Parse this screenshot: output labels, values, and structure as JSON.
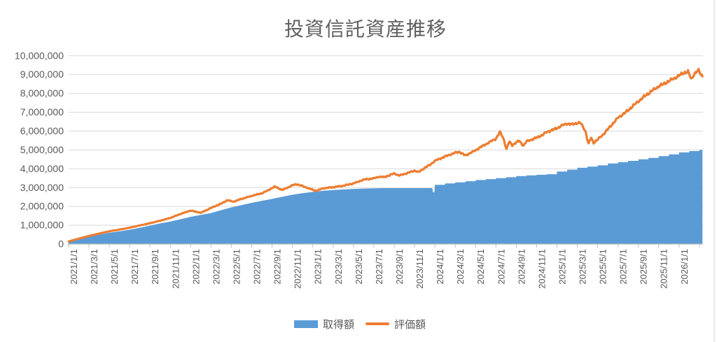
{
  "title": "投資信託資産推移",
  "colors": {
    "area": "#5B9BD5",
    "line": "#ED7D31",
    "gridline": "#D9D9D9",
    "axis": "#BFBFBF",
    "tick": "#BFBFBF",
    "label": "#595959",
    "title": "#5f5f5f",
    "chart_border": "#D9D9D9"
  },
  "legend": [
    {
      "label": "取得額",
      "color": "#5B9BD5",
      "kind": "area"
    },
    {
      "label": "評価額",
      "color": "#ED7D31",
      "kind": "line"
    }
  ],
  "chart_data": {
    "type": "area",
    "title": "投資信託資産推移",
    "x_unit": "months since 2021/1/1 (fractional = intra-month date)",
    "x_range": [
      0,
      62.3
    ],
    "ylim": [
      0,
      10000000
    ],
    "grid": "horizontal-only",
    "legend_position": "bottom-center",
    "y_tick_values": [
      0,
      1000000,
      2000000,
      3000000,
      4000000,
      5000000,
      6000000,
      7000000,
      8000000,
      9000000,
      10000000
    ],
    "y_tick_labels": [
      "0",
      "1,000,000",
      "2,000,000",
      "3,000,000",
      "4,000,000",
      "5,000,000",
      "6,000,000",
      "7,000,000",
      "8,000,000",
      "9,000,000",
      "10,000,000"
    ],
    "x_tick_labels": [
      "2021/1/1",
      "2021/3/1",
      "2021/5/1",
      "2021/7/1",
      "2021/9/1",
      "2021/11/1",
      "2022/1/1",
      "2022/3/1",
      "2022/5/1",
      "2022/7/1",
      "2022/9/1",
      "2022/11/1",
      "2023/1/1",
      "2023/3/1",
      "2023/5/1",
      "2023/7/1",
      "2023/9/1",
      "2023/11/1",
      "2024/1/1",
      "2024/3/1",
      "2024/5/1",
      "2024/7/1",
      "2024/9/1",
      "2024/11/1",
      "2025/1/1",
      "2025/3/1",
      "2025/5/1",
      "2025/7/1",
      "2025/9/1",
      "2025/11/1",
      "2026/1/1"
    ],
    "x_tick_month_interval": 2,
    "series": [
      {
        "name": "取得額",
        "kind": "step-area",
        "color": "#5B9BD5",
        "points": [
          [
            0,
            130000
          ],
          [
            1,
            270000
          ],
          [
            2,
            400000
          ],
          [
            3,
            500000
          ],
          [
            4,
            600000
          ],
          [
            5,
            680000
          ],
          [
            6,
            760000
          ],
          [
            7,
            870000
          ],
          [
            8,
            980000
          ],
          [
            9,
            1100000
          ],
          [
            10,
            1200000
          ],
          [
            11,
            1320000
          ],
          [
            12,
            1450000
          ],
          [
            13,
            1550000
          ],
          [
            14,
            1650000
          ],
          [
            15,
            1800000
          ],
          [
            16,
            1950000
          ],
          [
            17,
            2070000
          ],
          [
            18,
            2190000
          ],
          [
            19,
            2300000
          ],
          [
            20,
            2400000
          ],
          [
            21,
            2510000
          ],
          [
            22,
            2620000
          ],
          [
            23,
            2700000
          ],
          [
            24,
            2770000
          ],
          [
            25,
            2830000
          ],
          [
            26,
            2870000
          ],
          [
            27,
            2900000
          ],
          [
            28,
            2930000
          ],
          [
            29,
            2950000
          ],
          [
            30,
            2960000
          ],
          [
            31,
            2970000
          ],
          [
            35.75,
            2970000
          ],
          [
            35.82,
            2750000
          ],
          [
            35.95,
            2750000
          ],
          [
            36,
            3150000
          ],
          [
            37,
            3150000
          ],
          [
            37,
            3220000
          ],
          [
            38,
            3220000
          ],
          [
            38,
            3280000
          ],
          [
            39,
            3280000
          ],
          [
            39,
            3340000
          ],
          [
            40,
            3340000
          ],
          [
            40,
            3400000
          ],
          [
            41,
            3400000
          ],
          [
            41,
            3450000
          ],
          [
            42,
            3450000
          ],
          [
            42,
            3500000
          ],
          [
            43,
            3500000
          ],
          [
            43,
            3550000
          ],
          [
            44,
            3550000
          ],
          [
            44,
            3610000
          ],
          [
            45,
            3610000
          ],
          [
            45,
            3650000
          ],
          [
            46,
            3650000
          ],
          [
            46,
            3680000
          ],
          [
            47,
            3680000
          ],
          [
            47,
            3710000
          ],
          [
            48,
            3710000
          ],
          [
            48,
            3850000
          ],
          [
            49,
            3850000
          ],
          [
            49,
            3950000
          ],
          [
            50,
            3950000
          ],
          [
            50,
            4050000
          ],
          [
            51,
            4050000
          ],
          [
            51,
            4110000
          ],
          [
            52,
            4110000
          ],
          [
            52,
            4180000
          ],
          [
            53,
            4180000
          ],
          [
            53,
            4280000
          ],
          [
            54,
            4280000
          ],
          [
            54,
            4350000
          ],
          [
            55,
            4350000
          ],
          [
            55,
            4420000
          ],
          [
            56,
            4420000
          ],
          [
            56,
            4500000
          ],
          [
            57,
            4500000
          ],
          [
            57,
            4580000
          ],
          [
            58,
            4580000
          ],
          [
            58,
            4670000
          ],
          [
            59,
            4670000
          ],
          [
            59,
            4760000
          ],
          [
            60,
            4760000
          ],
          [
            60,
            4870000
          ],
          [
            61,
            4870000
          ],
          [
            61,
            4940000
          ],
          [
            62,
            4940000
          ],
          [
            62,
            5000000
          ],
          [
            62.3,
            5000000
          ]
        ]
      },
      {
        "name": "評価額",
        "kind": "line",
        "color": "#ED7D31",
        "jitter_pct": 0.011,
        "points": [
          [
            0,
            140000
          ],
          [
            1,
            290000
          ],
          [
            2,
            430000
          ],
          [
            3,
            560000
          ],
          [
            4,
            680000
          ],
          [
            5,
            770000
          ],
          [
            6,
            870000
          ],
          [
            7,
            990000
          ],
          [
            8,
            1110000
          ],
          [
            9,
            1240000
          ],
          [
            10,
            1390000
          ],
          [
            11,
            1600000
          ],
          [
            12,
            1780000
          ],
          [
            13,
            1660000
          ],
          [
            14,
            1920000
          ],
          [
            15,
            2150000
          ],
          [
            15.6,
            2330000
          ],
          [
            16.2,
            2250000
          ],
          [
            17,
            2400000
          ],
          [
            18,
            2560000
          ],
          [
            19,
            2700000
          ],
          [
            19.6,
            2850000
          ],
          [
            20,
            2980000
          ],
          [
            20.3,
            3050000
          ],
          [
            21,
            2870000
          ],
          [
            22,
            3120000
          ],
          [
            22.4,
            3180000
          ],
          [
            23,
            3080000
          ],
          [
            24,
            2880000
          ],
          [
            24.4,
            2830000
          ],
          [
            25,
            2960000
          ],
          [
            26,
            3020000
          ],
          [
            27,
            3100000
          ],
          [
            28,
            3220000
          ],
          [
            29,
            3420000
          ],
          [
            30,
            3490000
          ],
          [
            30.5,
            3580000
          ],
          [
            31,
            3550000
          ],
          [
            32,
            3750000
          ],
          [
            32.5,
            3640000
          ],
          [
            33,
            3720000
          ],
          [
            34,
            3900000
          ],
          [
            34.4,
            3820000
          ],
          [
            35,
            4050000
          ],
          [
            35.5,
            4200000
          ],
          [
            36,
            4420000
          ],
          [
            37,
            4650000
          ],
          [
            38,
            4850000
          ],
          [
            38.4,
            4900000
          ],
          [
            39,
            4700000
          ],
          [
            40,
            4980000
          ],
          [
            40.5,
            5150000
          ],
          [
            41,
            5300000
          ],
          [
            42,
            5600000
          ],
          [
            42.4,
            5950000
          ],
          [
            42.75,
            5600000
          ],
          [
            43.05,
            5020000
          ],
          [
            43.3,
            5450000
          ],
          [
            43.6,
            5250000
          ],
          [
            44,
            5400000
          ],
          [
            44.3,
            5480000
          ],
          [
            44.7,
            5220000
          ],
          [
            45,
            5450000
          ],
          [
            45.5,
            5550000
          ],
          [
            46,
            5650000
          ],
          [
            46.6,
            5800000
          ],
          [
            47,
            5950000
          ],
          [
            47.5,
            6050000
          ],
          [
            48,
            6150000
          ],
          [
            48.5,
            6300000
          ],
          [
            49,
            6400000
          ],
          [
            49.5,
            6350000
          ],
          [
            50,
            6430000
          ],
          [
            50.3,
            6450000
          ],
          [
            50.8,
            6000000
          ],
          [
            51.1,
            5300000
          ],
          [
            51.35,
            5650000
          ],
          [
            51.6,
            5380000
          ],
          [
            52,
            5550000
          ],
          [
            52.5,
            5800000
          ],
          [
            53,
            6100000
          ],
          [
            53.5,
            6400000
          ],
          [
            54,
            6710000
          ],
          [
            54.5,
            6900000
          ],
          [
            55,
            7100000
          ],
          [
            55.5,
            7350000
          ],
          [
            56,
            7580000
          ],
          [
            56.5,
            7800000
          ],
          [
            57,
            8000000
          ],
          [
            57.5,
            8200000
          ],
          [
            58,
            8380000
          ],
          [
            58.5,
            8500000
          ],
          [
            59,
            8650000
          ],
          [
            59.5,
            8800000
          ],
          [
            60,
            8940000
          ],
          [
            60.5,
            9100000
          ],
          [
            60.9,
            9150000
          ],
          [
            61.2,
            8750000
          ],
          [
            61.5,
            9050000
          ],
          [
            61.9,
            9220000
          ],
          [
            62.05,
            9100000
          ],
          [
            62.3,
            8900000
          ]
        ]
      }
    ]
  }
}
